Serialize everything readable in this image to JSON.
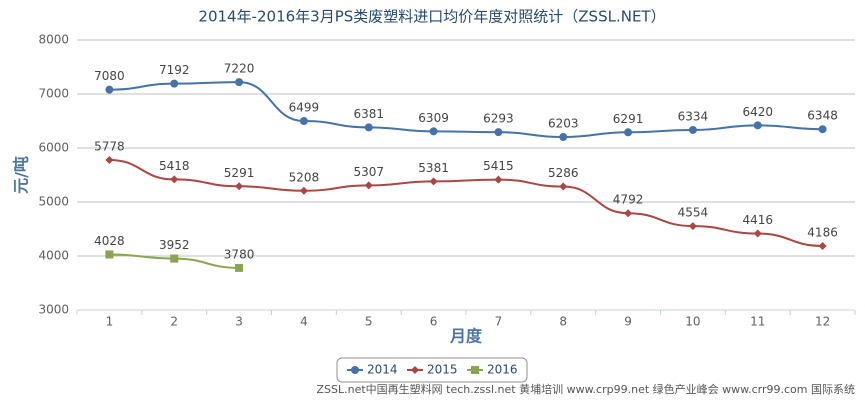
{
  "chart_data": {
    "type": "line",
    "title": "2014年-2016年3月PS类废塑料进口均价年度对照统计（ZSSL.NET）",
    "x_label": "月度",
    "y_label": "元/吨",
    "categories": [
      "1",
      "2",
      "3",
      "4",
      "5",
      "6",
      "7",
      "8",
      "9",
      "10",
      "11",
      "12"
    ],
    "series": [
      {
        "name": "2014",
        "color": "#4572A7",
        "marker": "circle",
        "values": [
          7080,
          7192,
          7220,
          6499,
          6381,
          6309,
          6293,
          6203,
          6291,
          6334,
          6420,
          6348
        ]
      },
      {
        "name": "2015",
        "color": "#AA4643",
        "marker": "diamond",
        "values": [
          5778,
          5418,
          5291,
          5208,
          5307,
          5381,
          5415,
          5286,
          4792,
          4554,
          4416,
          4186
        ]
      },
      {
        "name": "2016",
        "color": "#89A54E",
        "marker": "square",
        "values": [
          4028,
          3952,
          3780,
          null,
          null,
          null,
          null,
          null,
          null,
          null,
          null,
          null
        ]
      }
    ],
    "ylim": [
      3000,
      8000
    ],
    "yticks": [
      3000,
      4000,
      5000,
      6000,
      7000,
      8000
    ],
    "grid": true,
    "legend": "bottom",
    "credits": "ZSSL.net中国再生塑料网 tech.zssl.net 黄埔培训 www.crp99.net 绿色产业峰会 www.crr99.com 国际系统"
  }
}
